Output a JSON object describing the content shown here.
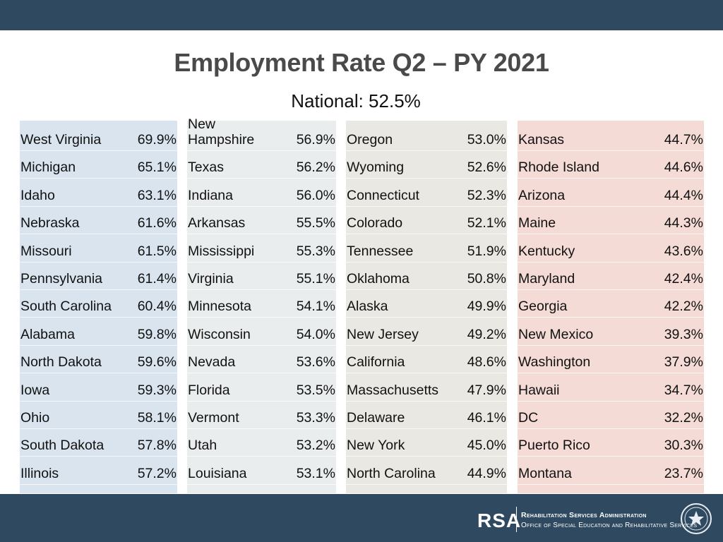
{
  "title": "Employment Rate Q2 – PY 2021",
  "subtitle": "National: 52.5%",
  "columns": [
    [
      {
        "state": "West Virginia",
        "rate": "69.9%"
      },
      {
        "state": "Michigan",
        "rate": "65.1%"
      },
      {
        "state": "Idaho",
        "rate": "63.1%"
      },
      {
        "state": "Nebraska",
        "rate": "61.6%"
      },
      {
        "state": "Missouri",
        "rate": "61.5%"
      },
      {
        "state": "Pennsylvania",
        "rate": "61.4%"
      },
      {
        "state": "South Carolina",
        "rate": "60.4%"
      },
      {
        "state": "Alabama",
        "rate": "59.8%"
      },
      {
        "state": "North Dakota",
        "rate": "59.6%"
      },
      {
        "state": "Iowa",
        "rate": "59.3%"
      },
      {
        "state": "Ohio",
        "rate": "58.1%"
      },
      {
        "state": "South Dakota",
        "rate": "57.8%"
      },
      {
        "state": "Illinois",
        "rate": "57.2%"
      }
    ],
    [
      {
        "state": "New\nHampshire",
        "rate": "56.9%"
      },
      {
        "state": "Texas",
        "rate": "56.2%"
      },
      {
        "state": "Indiana",
        "rate": "56.0%"
      },
      {
        "state": "Arkansas",
        "rate": "55.5%"
      },
      {
        "state": "Mississippi",
        "rate": "55.3%"
      },
      {
        "state": "Virginia",
        "rate": "55.1%"
      },
      {
        "state": "Minnesota",
        "rate": "54.1%"
      },
      {
        "state": "Wisconsin",
        "rate": "54.0%"
      },
      {
        "state": "Nevada",
        "rate": "53.6%"
      },
      {
        "state": "Florida",
        "rate": "53.5%"
      },
      {
        "state": "Vermont",
        "rate": "53.3%"
      },
      {
        "state": "Utah",
        "rate": "53.2%"
      },
      {
        "state": "Louisiana",
        "rate": "53.1%"
      }
    ],
    [
      {
        "state": "Oregon",
        "rate": "53.0%"
      },
      {
        "state": "Wyoming",
        "rate": "52.6%"
      },
      {
        "state": "Connecticut",
        "rate": "52.3%"
      },
      {
        "state": "Colorado",
        "rate": "52.1%"
      },
      {
        "state": "Tennessee",
        "rate": "51.9%"
      },
      {
        "state": "Oklahoma",
        "rate": "50.8%"
      },
      {
        "state": "Alaska",
        "rate": "49.9%"
      },
      {
        "state": "New Jersey",
        "rate": "49.2%"
      },
      {
        "state": "California",
        "rate": "48.6%"
      },
      {
        "state": "Massachusetts",
        "rate": "47.9%"
      },
      {
        "state": "Delaware",
        "rate": "46.1%"
      },
      {
        "state": "New York",
        "rate": "45.0%"
      },
      {
        "state": "North Carolina",
        "rate": "44.9%"
      }
    ],
    [
      {
        "state": "Kansas",
        "rate": "44.7%"
      },
      {
        "state": "Rhode Island",
        "rate": "44.6%"
      },
      {
        "state": "Arizona",
        "rate": "44.4%"
      },
      {
        "state": "Maine",
        "rate": "44.3%"
      },
      {
        "state": "Kentucky",
        "rate": "43.6%"
      },
      {
        "state": "Maryland",
        "rate": "42.4%"
      },
      {
        "state": "Georgia",
        "rate": "42.2%"
      },
      {
        "state": "New Mexico",
        "rate": "39.3%"
      },
      {
        "state": "Washington",
        "rate": "37.9%"
      },
      {
        "state": "Hawaii",
        "rate": "34.7%"
      },
      {
        "state": "DC",
        "rate": "32.2%"
      },
      {
        "state": "Puerto Rico",
        "rate": "30.3%"
      },
      {
        "state": "Montana",
        "rate": "23.7%"
      }
    ]
  ],
  "footer": {
    "logo_text": "RSA",
    "org_name": "Rehabilitation Services Administration",
    "org_office": "Office of Special Education and Rehabilitative Services",
    "seal_icon": "department-seal-icon"
  },
  "colors": {
    "bar": "#2f4a60",
    "column_1": "#d9e4ef",
    "column_2": "#eaeded",
    "column_3": "#eae8e2",
    "column_4": "#f4dbd6"
  }
}
